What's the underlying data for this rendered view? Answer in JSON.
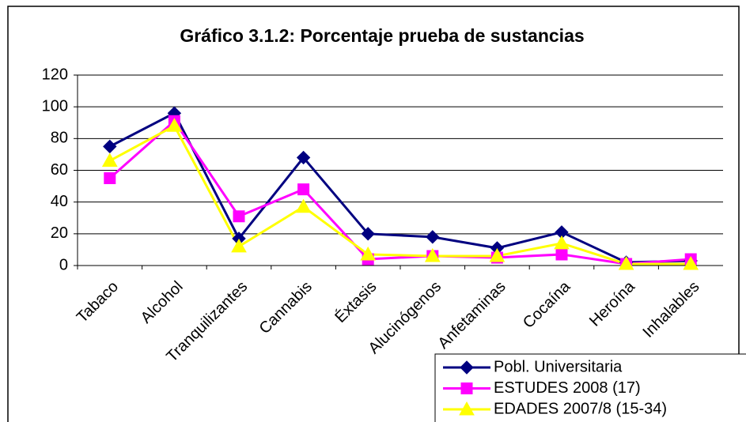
{
  "chart_data": {
    "type": "line",
    "title": "Gráfico 3.1.2: Porcentaje prueba de sustancias",
    "categories": [
      "Tabaco",
      "Alcohol",
      "Tranquilizantes",
      "Cannabis",
      "Éxtasis",
      "Alucinógenos",
      "Anfetaminas",
      "Cocaína",
      "Heroína",
      "Inhalables"
    ],
    "series": [
      {
        "name": "Pobl. Universitaria",
        "color": "#000080",
        "marker": "diamond",
        "values": [
          75,
          96,
          17,
          68,
          20,
          18,
          11,
          21,
          2,
          3
        ]
      },
      {
        "name": "ESTUDES 2008 (17)",
        "color": "#ff00ff",
        "marker": "square",
        "values": [
          55,
          91,
          31,
          48,
          4,
          6,
          5,
          7,
          1,
          4
        ]
      },
      {
        "name": "EDADES 2007/8 (15-34)",
        "color": "#ffff00",
        "marker": "triangle",
        "values": [
          66,
          88,
          12,
          37,
          7,
          6,
          6,
          14,
          1,
          1
        ]
      }
    ],
    "ylim": [
      0,
      120
    ],
    "yticks": [
      0,
      20,
      40,
      60,
      80,
      100,
      120
    ],
    "grid": true,
    "legend": "lower right"
  }
}
